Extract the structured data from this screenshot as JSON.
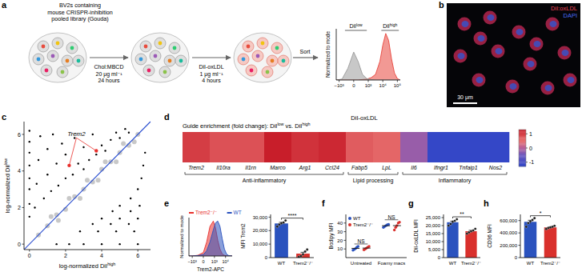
{
  "panel_labels": [
    "a",
    "b",
    "c",
    "d",
    "e",
    "f",
    "g",
    "h"
  ],
  "diagram": {
    "cells_label": [
      "BV2s containing",
      "mouse CRISPR-inhibition",
      "pooled library (Gouda)"
    ],
    "step1": [
      "Chol:MBCD",
      "20 μg ml⁻¹",
      "24 hours"
    ],
    "step2": [
      "DiI-oxLDL",
      "1 μg ml⁻¹",
      "4 hours"
    ],
    "step3": "Sort"
  },
  "image": {
    "labels": [
      {
        "text": "DiI:oxLDL",
        "color": "#f0455a"
      },
      {
        "text": "DAPI",
        "color": "#4a6cf5"
      }
    ],
    "scale_bar": "30 μm"
  },
  "chart_data": [
    {
      "type": "density",
      "ylabel": "Normalized to mode",
      "x": [
        -1.2,
        -0.8,
        -0.4,
        0,
        0.3,
        0.6,
        0.9,
        1.2,
        1.5,
        1.8,
        2.0,
        2.2,
        2.4,
        2.6,
        2.8,
        3.0,
        3.2
      ],
      "series": [
        {
          "color": "#e8453c",
          "values": [
            0,
            0,
            0,
            0,
            0,
            0.01,
            0.02,
            0.05,
            0.12,
            0.4,
            0.75,
            1.0,
            0.85,
            0.45,
            0.15,
            0.03,
            0
          ]
        },
        {
          "color": "#9a9a9a",
          "values": [
            0,
            0.02,
            0.25,
            0.6,
            0.4,
            0.12,
            0.03,
            0.01,
            0,
            0,
            0,
            0,
            0,
            0,
            0,
            0,
            0
          ]
        }
      ],
      "xlim": [
        -1.2,
        3.2
      ],
      "xticks": [
        {
          "value": -1,
          "label": "−10³"
        },
        0,
        {
          "value": 1,
          "label": "10³"
        },
        {
          "value": 2,
          "label": "10⁴"
        },
        {
          "value": 3,
          "label": "10⁵"
        }
      ],
      "ylim": [
        0,
        1.1
      ],
      "tick_labels": "x",
      "annotations": [
        {
          "text": [
            {
              "text": "DiI"
            },
            {
              "text": "low",
              "sup": true
            }
          ],
          "x": [
            -0.6,
            0.9
          ]
        },
        {
          "text": [
            {
              "text": "DiI"
            },
            {
              "text": "high",
              "sup": true
            }
          ],
          "x": [
            1.9,
            3.1
          ]
        }
      ]
    },
    {
      "type": "scatter",
      "xlabel": [
        {
          "text": "log-normalized DiI"
        },
        {
          "text": "high",
          "sup": true
        }
      ],
      "ylabel": [
        {
          "text": "log-normalized DiI"
        },
        {
          "text": "low",
          "sup": true
        }
      ],
      "xlim": [
        -0.3,
        6.7
      ],
      "ylim": [
        -0.3,
        6.7
      ],
      "xticks": [
        0,
        2,
        4,
        6
      ],
      "yticks": [
        0,
        2,
        4,
        6
      ],
      "series": [
        {
          "color": "#c8c8c8",
          "x": [
            0.5,
            1,
            1.5,
            2,
            2.5,
            3,
            3.5,
            4,
            4.5,
            5,
            5.5,
            6,
            1.2,
            2.2,
            3.2,
            4.2,
            5.2,
            1.6,
            2.8,
            3.8,
            4.8,
            5.8
          ],
          "values": [
            0.5,
            1,
            1.6,
            1.9,
            2.6,
            3,
            3.4,
            4.1,
            4.5,
            5,
            5.4,
            6,
            1.5,
            2.5,
            3.5,
            4.5,
            5.5,
            1.3,
            2.5,
            3.5,
            4.5,
            5.6
          ]
        },
        {
          "color": "#000000",
          "x": [
            0,
            0,
            0,
            0,
            0,
            0,
            0,
            0,
            0.3,
            0.4,
            0.5,
            0.6,
            0.8,
            1,
            1,
            1.2,
            1.3,
            1.5,
            1.6,
            1.8,
            2,
            2,
            2.4,
            2.5,
            2.7,
            3,
            3,
            3.3,
            3.5,
            3.7,
            4,
            4.2,
            4.5,
            4.8,
            5,
            5.3,
            5.5,
            1.5,
            2.2,
            3,
            4,
            5,
            6,
            2.8,
            3.8,
            4.8,
            5.8,
            3.5,
            4.5,
            5.5,
            4,
            5,
            6,
            4.6,
            5.6,
            5,
            6.1,
            5.6,
            6,
            6.2,
            6.3,
            6.4
          ],
          "values": [
            1.5,
            2.2,
            3,
            3.6,
            4.3,
            5,
            5.6,
            6.2,
            2,
            3.3,
            4.6,
            5.9,
            2.5,
            3.8,
            5.2,
            2.9,
            6,
            4.4,
            3.2,
            5.5,
            3.6,
            4.9,
            3.8,
            5.8,
            4.4,
            4.1,
            5.3,
            4.6,
            6,
            4.9,
            5.4,
            5.1,
            5.7,
            6.1,
            5.8,
            6.3,
            6.1,
            0,
            0,
            0,
            0,
            0,
            0,
            0.7,
            0.7,
            0.7,
            0.7,
            1.1,
            1.1,
            1.1,
            1.4,
            1.4,
            1.4,
            1.8,
            1.8,
            2.1,
            2.1,
            2.5,
            3,
            3.6,
            4.3,
            5
          ]
        },
        {
          "color": "#e8302c",
          "x": [
            2.2,
            3.7
          ],
          "values": [
            4.3,
            5.1
          ]
        }
      ],
      "annotations": [
        {
          "text": "Trem2",
          "x": 2.6,
          "y": 5.9
        }
      ]
    },
    {
      "type": "heatmap",
      "title": "DiI-oxLDL",
      "subtitle": [
        {
          "text": "Guide enrichment (fold change): DiI"
        },
        {
          "text": "low",
          "sup": true
        },
        {
          "text": " vs. DiI"
        },
        {
          "text": "high",
          "sup": true
        }
      ],
      "categories": [
        "Trem2",
        "Il10ra",
        "Il1rn",
        "Marco",
        "Arg1",
        "Ccl24",
        "Fabp5",
        "LpL",
        "Il6",
        "Ifngr1",
        "Tnfaip1",
        "Nos2"
      ],
      "values": [
        1.0,
        0.8,
        0.8,
        1.3,
        1.1,
        1.2,
        0.7,
        0.6,
        -0.2,
        -1.2,
        -1.2,
        -1.2
      ],
      "groups": [
        {
          "label": "Anti-inflammatory",
          "start": 0,
          "end": 5
        },
        {
          "label": "Lipid processing",
          "start": 6,
          "end": 7
        },
        {
          "label": "Inflammatory",
          "start": 8,
          "end": 11
        }
      ],
      "colorbar": {
        "range": [
          -1.3,
          1.3
        ],
        "ticks": [
          -1,
          0,
          1
        ]
      }
    },
    {
      "type": "density",
      "xlabel": "Trem2-APC",
      "ylabel": "Normalized to mode",
      "x": [
        -1.3,
        -1,
        -0.5,
        0,
        0.3,
        0.6,
        0.9,
        1.1,
        1.3,
        1.5,
        1.7,
        1.9,
        2.1,
        2.3,
        2.6
      ],
      "series": [
        {
          "name": "Trem2⁻/⁻",
          "color": "#e8302c",
          "values": [
            0,
            0,
            0.02,
            0.1,
            0.4,
            0.85,
            1,
            0.8,
            0.45,
            0.2,
            0.06,
            0.02,
            0,
            0,
            0
          ]
        },
        {
          "name": "WT",
          "color": "#2a52be",
          "values": [
            0,
            0,
            0.01,
            0.04,
            0.15,
            0.4,
            0.75,
            0.95,
            1,
            0.85,
            0.5,
            0.2,
            0.05,
            0.01,
            0
          ]
        }
      ],
      "xlim": [
        -1.3,
        2.6
      ],
      "xticks": [
        {
          "value": -1,
          "label": "−10³"
        },
        0,
        {
          "value": 1,
          "label": "10³"
        },
        {
          "value": 2,
          "label": "10⁴"
        }
      ],
      "ylim": [
        0,
        1.1
      ],
      "tick_labels": "x",
      "legend": "top-left"
    },
    {
      "type": "bar",
      "ylabel": "MFI Trem2",
      "categories": [
        "WT",
        "Trem2⁻/⁻"
      ],
      "values": [
        25300,
        2940
      ],
      "errors": [
        800,
        1000
      ],
      "points": [
        [
          23000,
          24500,
          25500,
          26000,
          27500
        ],
        [
          500,
          1200,
          2500,
          4500,
          6000
        ]
      ],
      "colors": [
        "#2a52be",
        "#d9302c"
      ],
      "ylim": [
        0,
        32000
      ],
      "yticks": [
        0,
        {
          "value": 10000,
          "label": "10,000"
        },
        {
          "value": 20000,
          "label": "20,000"
        },
        {
          "value": 30000,
          "label": "30,000"
        }
      ],
      "annotations": [
        {
          "text": "****"
        }
      ]
    },
    {
      "type": "strip",
      "ylabel": "Bodipy MFI",
      "categories": [
        "Untreated",
        "Foamy macs"
      ],
      "legend": "top-left",
      "series": [
        {
          "name": "WT",
          "color": "#2a52be",
          "values": [
            10.7,
            36.9
          ],
          "points": [
            [
              8.5,
              9.5,
              10.5,
              12,
              13
            ],
            [
              35,
              36,
              37,
              38,
              38.5
            ]
          ]
        },
        {
          "name": "Trem2⁻/⁻",
          "color": "#d9302c",
          "values": [
            11,
            37
          ],
          "points": [
            [
              9,
              10,
              11,
              12,
              13
            ],
            [
              32,
              35,
              37,
              40,
              41
            ]
          ]
        }
      ],
      "ylim": [
        0,
        50
      ],
      "yticks": [
        10,
        20,
        30,
        40
      ],
      "annotations": [
        {
          "text": "NS",
          "category": 0
        },
        {
          "text": "NS",
          "category": 1
        }
      ]
    },
    {
      "type": "bar",
      "ylabel": "DiI-oxLDL MFI",
      "categories": [
        "WT",
        "Trem2⁻/⁻"
      ],
      "values": [
        22100,
        16500
      ],
      "errors": [
        700,
        550
      ],
      "points": [
        [
          20000,
          21000,
          22500,
          23000,
          24000
        ],
        [
          15000,
          15800,
          16500,
          17000,
          18000
        ]
      ],
      "colors": [
        "#2a52be",
        "#d9302c"
      ],
      "ylim": [
        0,
        27000
      ],
      "yticks": [
        0,
        {
          "value": 5000,
          "label": "5,000"
        },
        {
          "value": 10000,
          "label": "10,000"
        },
        {
          "value": 15000,
          "label": "15,000"
        },
        {
          "value": 20000,
          "label": "20,000"
        },
        {
          "value": 25000,
          "label": "25,000"
        }
      ],
      "annotations": [
        {
          "text": "**"
        }
      ]
    },
    {
      "type": "bar",
      "ylabel": "CD36 MFI",
      "categories": [
        "WT",
        "Trem2⁻/⁻"
      ],
      "values": [
        580000,
        490000
      ],
      "errors": [
        25000,
        9000
      ],
      "points": [
        [
          500000,
          560000,
          590000,
          610000,
          640000
        ],
        [
          465000,
          480000,
          490000,
          500000,
          515000
        ]
      ],
      "colors": [
        "#2a52be",
        "#d9302c"
      ],
      "ylim": [
        0,
        700000
      ],
      "yticks": [
        0,
        {
          "value": 200000,
          "label": "200,000"
        },
        {
          "value": 400000,
          "label": "400,000"
        },
        {
          "value": 600000,
          "label": "600,000"
        }
      ],
      "annotations": [
        {
          "text": "*"
        }
      ]
    }
  ]
}
